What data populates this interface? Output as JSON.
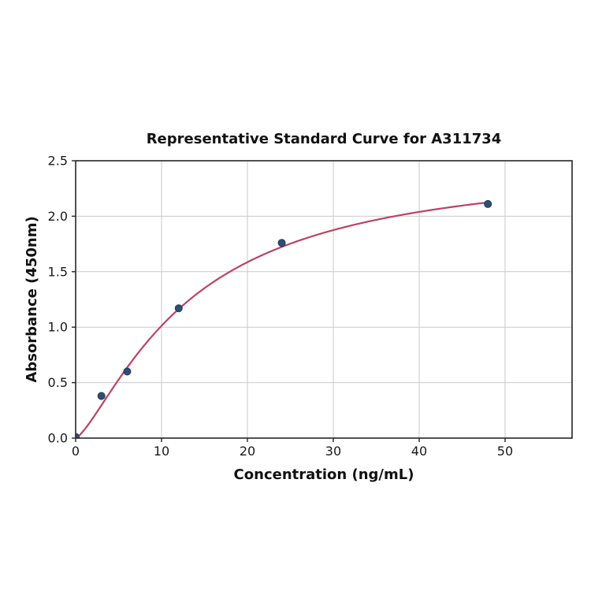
{
  "figure": {
    "title": "Representative Standard Curve for A311734"
  },
  "chart_data": {
    "type": "scatter",
    "title": "Representative Standard Curve for A311734",
    "xlabel": "Concentration (ng/mL)",
    "ylabel": "Absorbance (450nm)",
    "points": [
      {
        "x": 0,
        "y": 0.01
      },
      {
        "x": 3,
        "y": 0.38
      },
      {
        "x": 6,
        "y": 0.6
      },
      {
        "x": 12,
        "y": 1.17
      },
      {
        "x": 24,
        "y": 1.76
      },
      {
        "x": 48,
        "y": 2.11
      }
    ],
    "fit_curve": {
      "model": "4PL",
      "a": 0.0,
      "b": 1.35,
      "c": 13.3,
      "d": 2.5,
      "x_start": 0,
      "x_end": 48
    },
    "xlim": [
      0,
      57.8
    ],
    "ylim": [
      0,
      2.5
    ],
    "x_ticks": [
      0,
      10,
      20,
      30,
      40,
      50
    ],
    "x_tick_labels": [
      "0",
      "10",
      "20",
      "30",
      "40",
      "50"
    ],
    "y_ticks": [
      0.0,
      0.5,
      1.0,
      1.5,
      2.0,
      2.5
    ],
    "y_tick_labels": [
      "0.0",
      "0.5",
      "1.0",
      "1.5",
      "2.0",
      "2.5"
    ],
    "grid": true,
    "legend": "none",
    "colors": {
      "curve": "#bc4265",
      "marker_fill": "#2f4e74",
      "marker_edge": "#223a56",
      "grid": "#c9c9c9",
      "spine": "#262626",
      "text": "#111111",
      "background": "#ffffff"
    }
  }
}
